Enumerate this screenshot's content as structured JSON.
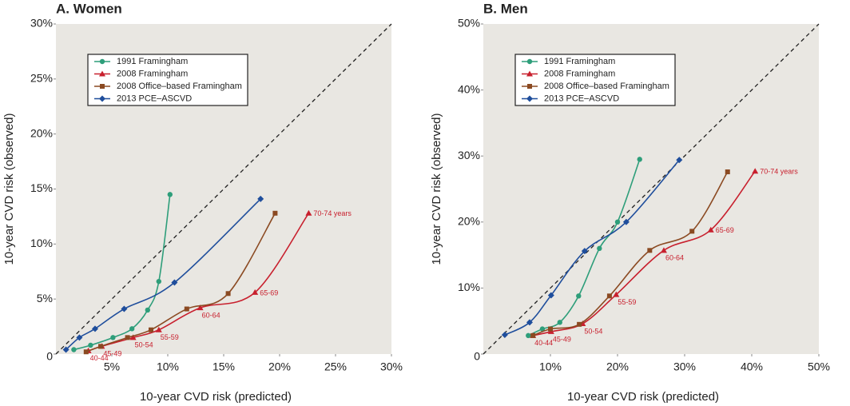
{
  "chart_data": [
    {
      "type": "line",
      "title": "A. Women",
      "xlabel": "10-year CVD risk (predicted)",
      "ylabel": "10-year CVD risk (observed)",
      "xlim": [
        0,
        30
      ],
      "ylim": [
        0,
        30
      ],
      "xticks": [
        {
          "value": 5,
          "label": "5%"
        },
        {
          "value": 10,
          "label": "10%"
        },
        {
          "value": 15,
          "label": "15%"
        },
        {
          "value": 20,
          "label": "20%"
        },
        {
          "value": 25,
          "label": "25%"
        },
        {
          "value": 30,
          "label": "30%"
        }
      ],
      "yticks": [
        0,
        {
          "value": 5,
          "label": "5%"
        },
        {
          "value": 10,
          "label": "10%"
        },
        {
          "value": 15,
          "label": "15%"
        },
        {
          "value": 20,
          "label": "20%"
        },
        {
          "value": 25,
          "label": "25%"
        },
        {
          "value": 30,
          "label": "30%"
        }
      ],
      "diagonal": true,
      "legend": "upper left",
      "series": [
        {
          "name": "1991 Framingham",
          "color": "#2e9e7a",
          "marker": "circle",
          "x": [
            1.6,
            3.1,
            5.1,
            6.8,
            8.2,
            9.2,
            10.2
          ],
          "values": [
            0.4,
            0.8,
            1.5,
            2.3,
            4.0,
            6.6,
            14.5
          ]
        },
        {
          "name": "2008 Framingham",
          "color": "#c8202e",
          "marker": "triangle",
          "x": [
            2.9,
            4.1,
            6.9,
            9.2,
            12.9,
            17.8,
            22.6
          ],
          "values": [
            0.3,
            0.7,
            1.5,
            2.2,
            4.2,
            5.6,
            12.8
          ],
          "point_labels": [
            "40-44",
            "45-49",
            "50-54",
            "55-59",
            "60-64",
            "65-69",
            "70-74 years"
          ]
        },
        {
          "name": "2008 Office–based Framingham",
          "color": "#8b4a22",
          "marker": "square",
          "x": [
            2.7,
            4.0,
            6.4,
            8.5,
            11.7,
            15.4,
            19.6
          ],
          "values": [
            0.2,
            0.7,
            1.5,
            2.2,
            4.1,
            5.5,
            12.8
          ]
        },
        {
          "name": "2013 PCE–ASCVD",
          "color": "#1f4e9c",
          "marker": "diamond",
          "x": [
            0.9,
            2.1,
            3.5,
            6.1,
            10.6,
            18.3
          ],
          "values": [
            0.4,
            1.5,
            2.3,
            4.1,
            6.5,
            14.1
          ]
        }
      ]
    },
    {
      "type": "line",
      "title": "B. Men",
      "xlabel": "10-year CVD risk (predicted)",
      "ylabel": "10-year CVD risk (observed)",
      "xlim": [
        0,
        50
      ],
      "ylim": [
        0,
        50
      ],
      "xticks": [
        {
          "value": 10,
          "label": "10%"
        },
        {
          "value": 20,
          "label": "20%"
        },
        {
          "value": 30,
          "label": "30%"
        },
        {
          "value": 40,
          "label": "40%"
        },
        {
          "value": 50,
          "label": "50%"
        }
      ],
      "yticks": [
        0,
        {
          "value": 10,
          "label": "10%"
        },
        {
          "value": 20,
          "label": "20%"
        },
        {
          "value": 30,
          "label": "30%"
        },
        {
          "value": 40,
          "label": "40%"
        },
        {
          "value": 50,
          "label": "50%"
        }
      ],
      "diagonal": true,
      "legend": "upper left",
      "series": [
        {
          "name": "1991 Framingham",
          "color": "#2e9e7a",
          "marker": "circle",
          "x": [
            6.7,
            8.8,
            11.4,
            14.2,
            17.3,
            20.0,
            23.3
          ],
          "values": [
            2.8,
            3.8,
            4.8,
            8.8,
            16.0,
            20.0,
            29.5
          ]
        },
        {
          "name": "2008 Framingham",
          "color": "#c8202e",
          "marker": "triangle",
          "x": [
            7.4,
            10.1,
            14.8,
            19.8,
            26.9,
            33.9,
            40.5
          ],
          "values": [
            2.8,
            3.4,
            4.6,
            9.0,
            15.7,
            18.8,
            27.7
          ],
          "point_labels": [
            "40-44",
            "45-49",
            "50-54",
            "55-59",
            "60-64",
            "65-69",
            "70-74 years"
          ]
        },
        {
          "name": "2008 Office–based Framingham",
          "color": "#8b4a22",
          "marker": "square",
          "x": [
            7.4,
            10.0,
            14.3,
            18.8,
            24.8,
            31.1,
            36.4
          ],
          "values": [
            2.8,
            3.8,
            4.5,
            8.8,
            15.7,
            18.6,
            27.6
          ]
        },
        {
          "name": "2013 PCE–ASCVD",
          "color": "#1f4e9c",
          "marker": "diamond",
          "x": [
            3.2,
            6.9,
            10.1,
            15.1,
            21.3,
            29.2
          ],
          "values": [
            2.9,
            4.8,
            8.9,
            15.6,
            20.0,
            29.4
          ]
        }
      ]
    }
  ]
}
